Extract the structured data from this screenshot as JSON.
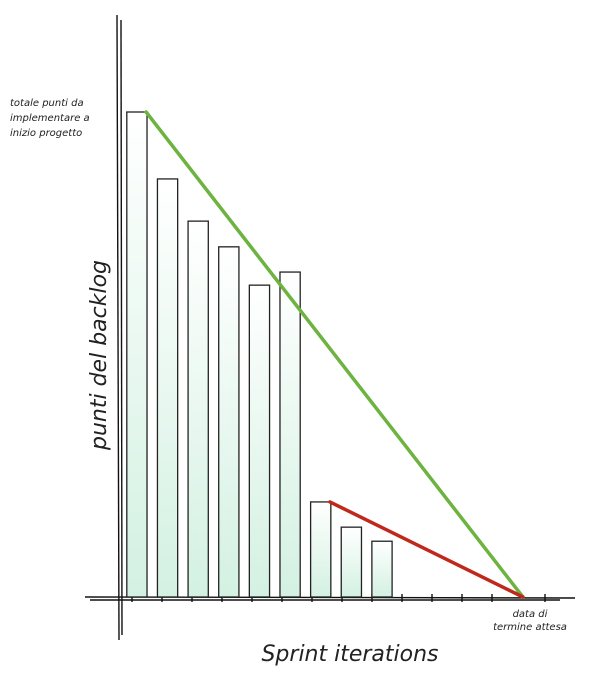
{
  "chart_data": {
    "type": "bar",
    "x_label": "Sprint iterations",
    "y_label": "punti del backlog",
    "annotations": {
      "start": [
        "totale punti da",
        "implementare a",
        "inizio progetto"
      ],
      "end": [
        "data di",
        "termine attesa"
      ]
    },
    "x": [
      1,
      2,
      3,
      4,
      5,
      6,
      7,
      8,
      9
    ],
    "values": [
      100,
      86.2,
      77.5,
      72.2,
      64.3,
      67.0,
      19.6,
      14.4,
      11.5
    ],
    "color": "#d3f1e2",
    "lines": [
      {
        "color": "#6cb33f",
        "x": [
          1.3,
          13.6
        ],
        "values": [
          100,
          0
        ]
      },
      {
        "color": "#c0281c",
        "x": [
          7.3,
          13.6
        ],
        "values": [
          19.6,
          0
        ]
      }
    ],
    "xlim": [
      0.35,
      15.3
    ],
    "ylim": [
      0,
      120
    ]
  }
}
